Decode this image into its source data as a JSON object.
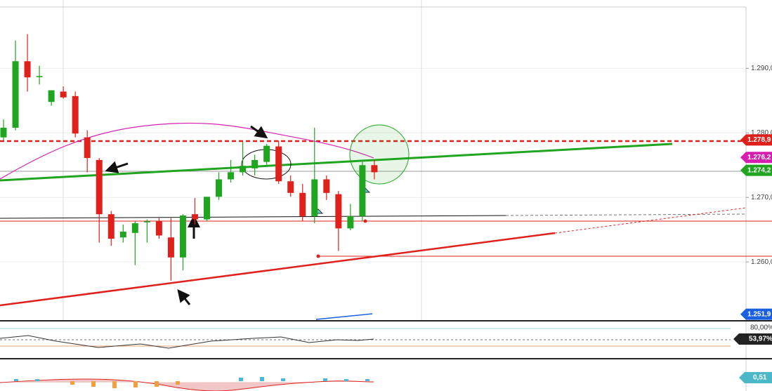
{
  "chart_data": {
    "type": "candlestick",
    "categories": [
      null,
      null,
      null,
      null,
      null,
      null,
      null,
      null,
      null,
      null,
      null,
      null,
      null,
      null,
      null,
      null,
      null,
      null,
      null,
      null,
      null,
      null,
      null,
      null,
      null,
      null,
      null,
      null,
      null,
      null,
      null,
      null
    ],
    "open": [
      1.2793,
      1.2808,
      1.2911,
      1.2888,
      1.2848,
      1.2864,
      1.2857,
      1.2793,
      1.2758,
      1.2674,
      1.2638,
      1.2645,
      1.2663,
      1.2663,
      1.2638,
      1.2607,
      1.2674,
      1.2666,
      1.2701,
      1.2728,
      1.2739,
      1.2745,
      1.2755,
      1.2779,
      1.2725,
      1.2707,
      1.2671,
      1.2728,
      1.2705,
      1.2652,
      1.2671,
      1.275
    ],
    "high": [
      1.2821,
      1.2943,
      1.2953,
      1.2904,
      1.2866,
      1.2872,
      1.2864,
      1.2804,
      1.2761,
      1.2679,
      1.2658,
      1.2663,
      1.2666,
      1.2668,
      1.2668,
      1.2674,
      1.2699,
      1.2701,
      1.2739,
      1.2758,
      1.2786,
      1.2766,
      1.2783,
      1.2788,
      1.2734,
      1.2721,
      1.2808,
      1.2734,
      1.271,
      1.269,
      1.2755,
      1.2758
    ],
    "low": [
      1.2788,
      1.2804,
      1.2864,
      1.2875,
      1.2842,
      1.2853,
      1.2793,
      1.2739,
      1.263,
      1.2625,
      1.263,
      1.2595,
      1.263,
      1.2636,
      1.2571,
      1.2587,
      1.2658,
      1.2663,
      1.2696,
      1.2723,
      1.2734,
      1.2734,
      1.275,
      1.2721,
      1.2701,
      1.2663,
      1.266,
      1.2696,
      1.2617,
      1.2649,
      1.2663,
      1.2728
    ],
    "close": [
      1.2808,
      1.2911,
      1.2886,
      1.2888,
      1.2866,
      1.2855,
      1.2799,
      1.2761,
      1.2674,
      1.2636,
      1.2647,
      1.266,
      1.2663,
      1.2641,
      1.2607,
      1.2672,
      1.2666,
      1.2701,
      1.2728,
      1.2739,
      1.2749,
      1.2758,
      1.278,
      1.2725,
      1.2707,
      1.2671,
      1.2728,
      1.2707,
      1.2652,
      1.2671,
      1.275,
      1.2739
    ],
    "up_color": "#1fa51f",
    "down_color": "#e0201b",
    "ylim": [
      1.2511,
      1.2995
    ],
    "yticks": [
      {
        "value": 1.26,
        "label": "1.260,0"
      },
      {
        "value": 1.27,
        "label": "1.270,0"
      },
      {
        "value": 1.28,
        "label": "1.280,0"
      },
      {
        "value": 1.29,
        "label": "1.290,0"
      }
    ],
    "grid": true,
    "price_tags": [
      {
        "value": 1.2789,
        "label": "1.278,9",
        "color": "#e0201b"
      },
      {
        "value": 1.2762,
        "label": "1.276,2",
        "color": "#d61fb0"
      },
      {
        "value": 1.2742,
        "label": "1.274,2",
        "color": "#1fa51f"
      },
      {
        "value": 1.2519,
        "label": "1.251,9",
        "color": "#1a5fe0"
      }
    ],
    "indicator_labels": {
      "oscillator_level": "80,00%",
      "oscillator_value": "53,97%",
      "macd_value": "0,51"
    }
  }
}
